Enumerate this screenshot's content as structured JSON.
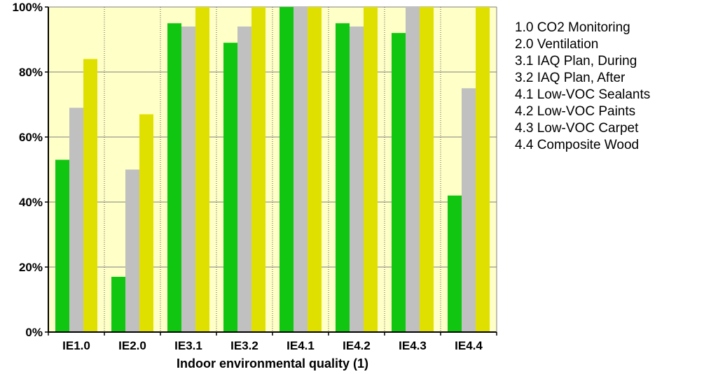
{
  "chart_data": {
    "type": "bar",
    "title": "",
    "xlabel": "Indoor environmental quality (1)",
    "ylabel": "",
    "categories": [
      "IE1.0",
      "IE2.0",
      "IE3.1",
      "IE3.2",
      "IE4.1",
      "IE4.2",
      "IE4.3",
      "IE4.4"
    ],
    "series": [
      {
        "values": [
          53,
          17,
          95,
          89,
          100,
          95,
          92,
          42
        ],
        "color": "#11c611"
      },
      {
        "values": [
          69,
          50,
          94,
          94,
          100,
          94,
          100,
          75
        ],
        "color": "#c0c0c0"
      },
      {
        "values": [
          84,
          67,
          100,
          100,
          100,
          100,
          100,
          100
        ],
        "color": "#e0e000"
      }
    ],
    "yticks": [
      "0%",
      "20%",
      "40%",
      "60%",
      "80%",
      "100%"
    ],
    "ylim": [
      0,
      100
    ],
    "grid": true,
    "plot_background": "#ffffc8",
    "notes": [
      "1.0 CO2 Monitoring",
      "2.0 Ventilation",
      "3.1 IAQ Plan, During",
      "3.2 IAQ Plan, After",
      "4.1 Low-VOC Sealants",
      "4.2 Low-VOC Paints",
      "4.3 Low-VOC Carpet",
      "4.4 Composite Wood"
    ]
  }
}
